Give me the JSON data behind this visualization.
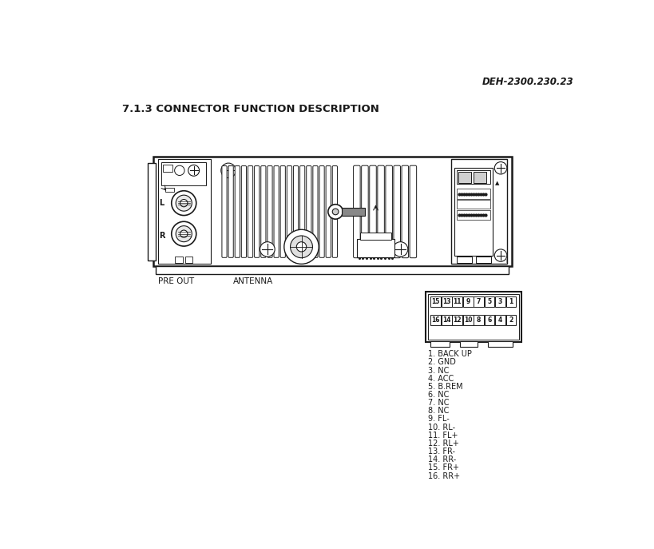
{
  "title_ref": "DEH-2300.230.23",
  "section_title": "7.1.3 CONNECTOR FUNCTION DESCRIPTION",
  "pre_out_label": "PRE OUT",
  "antenna_label": "ANTENNA",
  "connector_top_row": [
    "15",
    "13",
    "11",
    "9",
    "7",
    "5",
    "3",
    "1"
  ],
  "connector_bottom_row": [
    "16",
    "14",
    "12",
    "10",
    "8",
    "6",
    "4",
    "2"
  ],
  "pin_descriptions": [
    "1. BACK UP",
    "2. GND",
    "3. NC",
    "4. ACC",
    "5. B.REM",
    "6. NC",
    "7. NC",
    "8. NC",
    "9. FL-",
    "10. RL-",
    "11. FL+",
    "12. RL+",
    "13. FR-",
    "14. RR-",
    "15. FR+",
    "16. RR+"
  ],
  "bg_color": "#ffffff",
  "line_color": "#1a1a1a",
  "text_color": "#1a1a1a"
}
